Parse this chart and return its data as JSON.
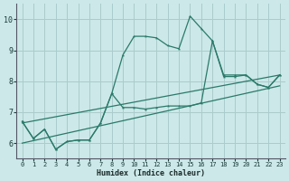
{
  "xlabel": "Humidex (Indice chaleur)",
  "bg_color": "#cce8e8",
  "grid_color": "#aacccc",
  "line_color": "#2a7a6a",
  "ylim": [
    5.5,
    10.5
  ],
  "xlim": [
    -0.5,
    23.5
  ],
  "yticks": [
    6,
    7,
    8,
    9,
    10
  ],
  "xticks": [
    0,
    1,
    2,
    3,
    4,
    5,
    6,
    7,
    8,
    9,
    10,
    11,
    12,
    13,
    14,
    15,
    16,
    17,
    18,
    19,
    20,
    21,
    22,
    23
  ],
  "series_main_x": [
    0,
    1,
    2,
    3,
    4,
    5,
    6,
    7,
    8,
    9,
    10,
    11,
    12,
    13,
    14,
    15,
    16,
    17,
    18,
    19,
    20,
    21,
    22,
    23
  ],
  "series_main_y": [
    6.7,
    6.15,
    6.45,
    5.8,
    6.05,
    6.1,
    6.1,
    6.65,
    7.6,
    8.85,
    9.45,
    9.45,
    9.4,
    9.15,
    9.05,
    10.1,
    9.7,
    9.3,
    8.2,
    8.2,
    8.2,
    7.9,
    7.8,
    8.2
  ],
  "series_mid_x": [
    0,
    1,
    2,
    3,
    4,
    5,
    6,
    7,
    8,
    9,
    10,
    11,
    12,
    13,
    14,
    15,
    16,
    17,
    18,
    19,
    20,
    21,
    22,
    23
  ],
  "series_mid_y": [
    6.7,
    6.15,
    6.45,
    5.8,
    6.05,
    6.1,
    6.1,
    6.65,
    7.6,
    7.15,
    7.15,
    7.1,
    7.15,
    7.2,
    7.2,
    7.2,
    7.3,
    9.3,
    8.15,
    8.15,
    8.2,
    7.9,
    7.8,
    8.2
  ],
  "line_upper_start": 6.65,
  "line_upper_end": 8.2,
  "line_lower_start": 6.0,
  "line_lower_end": 7.85,
  "xlabel_fontsize": 6,
  "tick_fontsize": 5
}
